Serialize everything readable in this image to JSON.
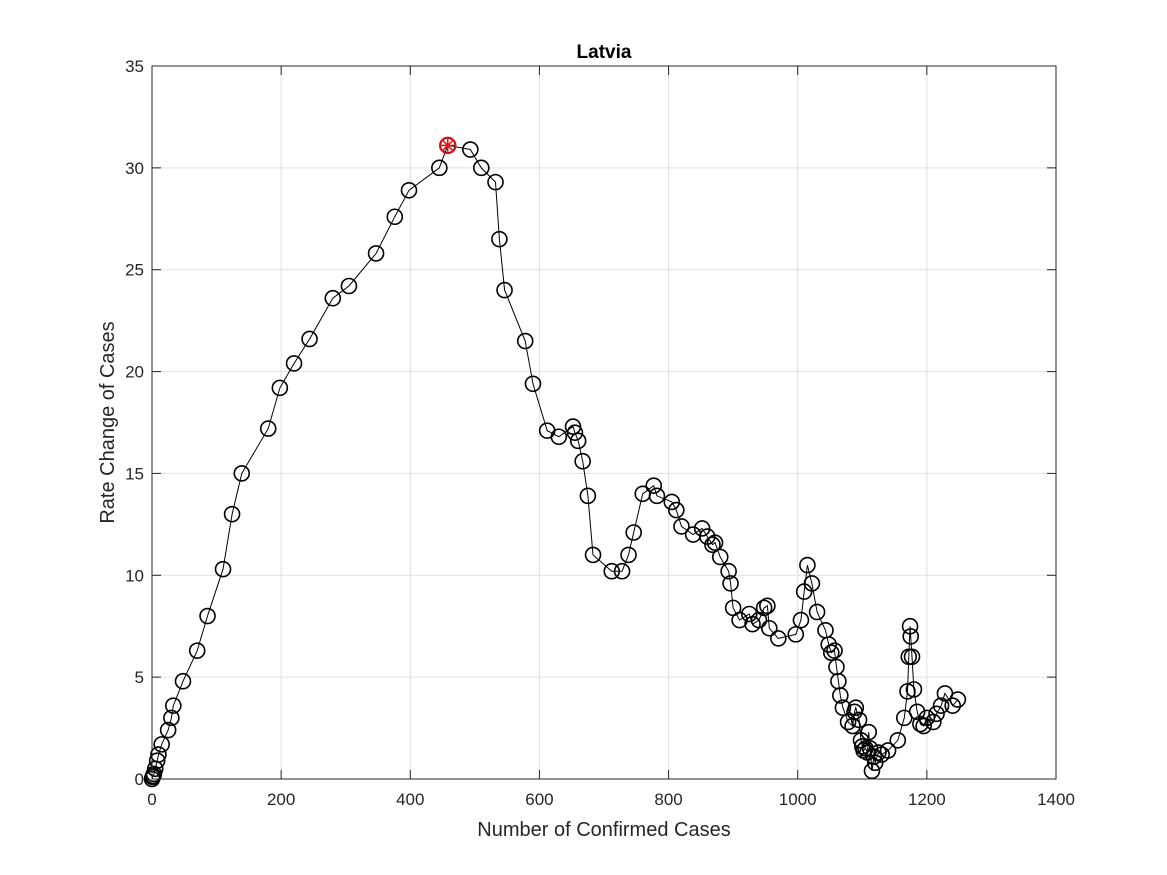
{
  "chart_data": {
    "type": "scatter",
    "title": "Latvia",
    "xlabel": "Number of Confirmed Cases",
    "ylabel": "Rate Change of Cases",
    "xlim": [
      0,
      1400
    ],
    "ylim": [
      0,
      35
    ],
    "xticks": [
      "0",
      "200",
      "400",
      "600",
      "800",
      "1000",
      "1200",
      "1400"
    ],
    "yticks": [
      "0",
      "5",
      "10",
      "15",
      "20",
      "25",
      "30",
      "35"
    ],
    "grid": true,
    "marker": "circle",
    "line": true,
    "colors": {
      "series": "#000000",
      "peak": "#e8141a",
      "grid": "#e0e0e0",
      "axis": "#262626"
    },
    "peak": {
      "x": 458,
      "y": 31.1
    },
    "series": [
      {
        "x": [
          0,
          1,
          2,
          3,
          5,
          8,
          10,
          15,
          25,
          30,
          33,
          48,
          70,
          86,
          110,
          124,
          139,
          180,
          198,
          220,
          244,
          280,
          305,
          347,
          376,
          398,
          445,
          458,
          493,
          510,
          532,
          538,
          546,
          578,
          590,
          612,
          630,
          652,
          655,
          660,
          667,
          675,
          683,
          712,
          728,
          738,
          746,
          760,
          777,
          782,
          805,
          812,
          820,
          838,
          852,
          860,
          868,
          872,
          880,
          893,
          896,
          900,
          910,
          925,
          930,
          940,
          948,
          953,
          956,
          970,
          997,
          1005,
          1010,
          1015,
          1022,
          1030,
          1043,
          1048,
          1052,
          1057,
          1060,
          1063,
          1066,
          1070,
          1078,
          1085,
          1088,
          1090,
          1095,
          1098,
          1100,
          1102,
          1105,
          1108,
          1110,
          1112,
          1115,
          1118,
          1120,
          1125,
          1130,
          1140,
          1155,
          1165,
          1170,
          1172,
          1174,
          1175,
          1177,
          1180,
          1185,
          1190,
          1195,
          1200,
          1210,
          1215,
          1222,
          1228,
          1240,
          1248
        ],
        "y": [
          0,
          0.1,
          0.15,
          0.25,
          0.5,
          0.9,
          1.2,
          1.7,
          2.4,
          3.0,
          3.6,
          4.8,
          6.3,
          8.0,
          10.3,
          13.0,
          15.0,
          17.2,
          19.2,
          20.4,
          21.6,
          23.6,
          24.2,
          25.8,
          27.6,
          28.9,
          30.0,
          31.1,
          30.9,
          30.0,
          29.3,
          26.5,
          24.0,
          21.5,
          19.4,
          17.1,
          16.8,
          17.3,
          17.0,
          16.6,
          15.6,
          13.9,
          11.0,
          10.2,
          10.2,
          11.0,
          12.1,
          14.0,
          14.4,
          13.9,
          13.6,
          13.2,
          12.4,
          12.0,
          12.3,
          11.9,
          11.5,
          11.6,
          10.9,
          10.2,
          9.6,
          8.4,
          7.8,
          8.1,
          7.6,
          7.8,
          8.4,
          8.5,
          7.4,
          6.9,
          7.1,
          7.8,
          9.2,
          10.5,
          9.6,
          8.2,
          7.3,
          6.6,
          6.2,
          6.3,
          5.5,
          4.8,
          4.1,
          3.5,
          2.8,
          2.6,
          3.3,
          3.5,
          2.9,
          1.9,
          1.6,
          1.4,
          1.5,
          1.3,
          2.3,
          1.5,
          0.4,
          1.1,
          0.8,
          1.3,
          1.2,
          1.4,
          1.9,
          3.0,
          4.3,
          6.0,
          7.5,
          7.0,
          6.0,
          4.4,
          3.3,
          2.7,
          2.6,
          3.0,
          2.8,
          3.2,
          3.6,
          4.2,
          3.6,
          3.9
        ]
      }
    ]
  }
}
